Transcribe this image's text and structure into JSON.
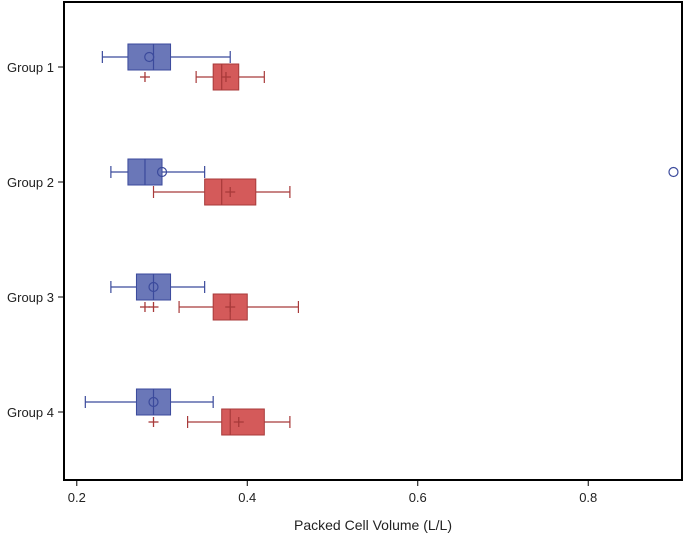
{
  "chart_data": {
    "type": "boxplot",
    "orientation": "horizontal",
    "title": "",
    "xlabel": "Packed Cell Volume (L/L)",
    "ylabel": "",
    "xlim": [
      0.185,
      0.91
    ],
    "xticks": [
      0.2,
      0.4,
      0.6,
      0.8
    ],
    "xtick_labels": [
      "0.2",
      "0.4",
      "0.6",
      "0.8"
    ],
    "categories": [
      "Group 1",
      "Group 2",
      "Group 3",
      "Group 4"
    ],
    "series": [
      {
        "name": "series-blue",
        "color": "#6a77b8",
        "edge_color": "#3b4a9c",
        "mean_marker": "circle",
        "outlier_marker": "circle",
        "boxes": [
          {
            "group": "Group 1",
            "whisker_low": 0.23,
            "q1": 0.26,
            "median": 0.29,
            "q3": 0.31,
            "whisker_high": 0.38,
            "mean": 0.285,
            "outliers": []
          },
          {
            "group": "Group 2",
            "whisker_low": 0.24,
            "q1": 0.26,
            "median": 0.28,
            "q3": 0.3,
            "whisker_high": 0.35,
            "mean": 0.3,
            "outliers": [
              0.9
            ]
          },
          {
            "group": "Group 3",
            "whisker_low": 0.24,
            "q1": 0.27,
            "median": 0.29,
            "q3": 0.31,
            "whisker_high": 0.35,
            "mean": 0.29,
            "outliers": []
          },
          {
            "group": "Group 4",
            "whisker_low": 0.21,
            "q1": 0.27,
            "median": 0.29,
            "q3": 0.31,
            "whisker_high": 0.36,
            "mean": 0.29,
            "outliers": []
          }
        ]
      },
      {
        "name": "series-red",
        "color": "#d45a5a",
        "edge_color": "#a83a3a",
        "mean_marker": "plus",
        "outlier_marker": "plus",
        "boxes": [
          {
            "group": "Group 1",
            "whisker_low": 0.34,
            "q1": 0.36,
            "median": 0.37,
            "q3": 0.39,
            "whisker_high": 0.42,
            "mean": 0.375,
            "outliers": [
              0.28
            ]
          },
          {
            "group": "Group 2",
            "whisker_low": 0.29,
            "q1": 0.35,
            "median": 0.37,
            "q3": 0.41,
            "whisker_high": 0.45,
            "mean": 0.38,
            "outliers": []
          },
          {
            "group": "Group 3",
            "whisker_low": 0.32,
            "q1": 0.36,
            "median": 0.38,
            "q3": 0.4,
            "whisker_high": 0.46,
            "mean": 0.38,
            "outliers": [
              0.28,
              0.29
            ]
          },
          {
            "group": "Group 4",
            "whisker_low": 0.33,
            "q1": 0.37,
            "median": 0.38,
            "q3": 0.42,
            "whisker_high": 0.45,
            "mean": 0.39,
            "outliers": [
              0.29
            ]
          }
        ]
      }
    ]
  }
}
